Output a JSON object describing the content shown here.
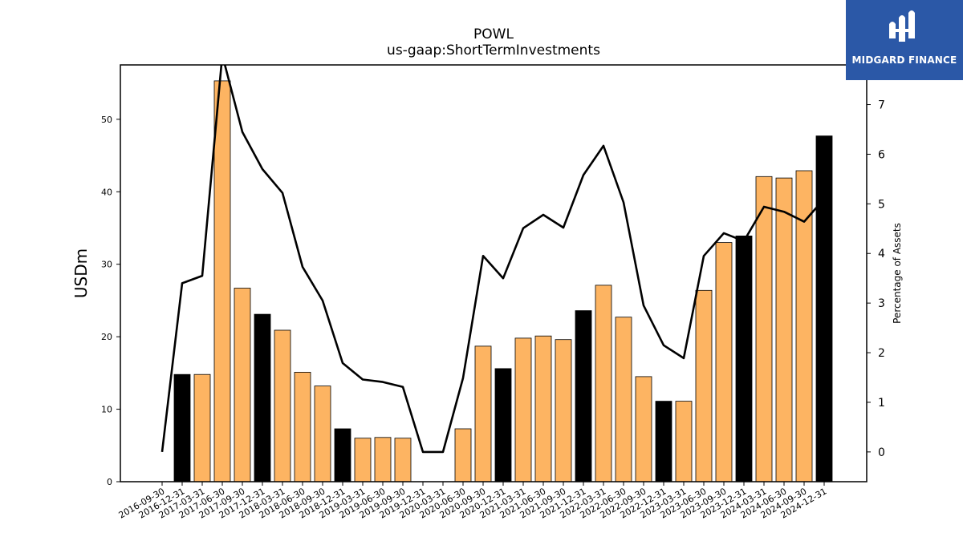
{
  "chart_data": {
    "type": "bar",
    "title": "POWL",
    "subtitle": "us-gaap:ShortTermInvestments",
    "ylabel": "USDm",
    "ylabel_right": "Percentage of Assets",
    "ylim": [
      0,
      57.5
    ],
    "y2lim": [
      -0.6,
      7.8
    ],
    "yticks": [
      0,
      10,
      20,
      30,
      40,
      50
    ],
    "y2ticks": [
      0,
      1,
      2,
      3,
      4,
      5,
      6,
      7
    ],
    "categories": [
      "2016-09-30",
      "2016-12-31",
      "2017-03-31",
      "2017-06-30",
      "2017-09-30",
      "2017-12-31",
      "2018-03-31",
      "2018-06-30",
      "2018-09-30",
      "2018-12-31",
      "2019-03-31",
      "2019-06-30",
      "2019-09-30",
      "2019-12-31",
      "2020-03-31",
      "2020-06-30",
      "2020-09-30",
      "2020-12-31",
      "2021-03-31",
      "2021-06-30",
      "2021-09-30",
      "2021-12-31",
      "2022-03-31",
      "2022-06-30",
      "2022-09-30",
      "2022-12-31",
      "2023-03-31",
      "2023-06-30",
      "2023-09-30",
      "2023-12-31",
      "2024-03-31",
      "2024-06-30",
      "2024-09-30",
      "2024-12-31"
    ],
    "series": [
      {
        "type": "bar",
        "values": [
          0,
          14.8,
          14.8,
          55.3,
          26.7,
          23.1,
          20.9,
          15.1,
          13.2,
          7.3,
          6.0,
          6.1,
          6.0,
          0,
          0,
          7.3,
          18.7,
          15.6,
          19.8,
          20.1,
          19.6,
          23.6,
          27.1,
          22.7,
          14.5,
          11.1,
          11.1,
          26.4,
          33.0,
          33.9,
          42.1,
          41.9,
          42.9,
          47.7
        ],
        "colors": [
          "#fdb462",
          "#000000",
          "#fdb462",
          "#fdb462",
          "#fdb462",
          "#000000",
          "#fdb462",
          "#fdb462",
          "#fdb462",
          "#000000",
          "#fdb462",
          "#fdb462",
          "#fdb462",
          "#000000",
          "#fdb462",
          "#fdb462",
          "#fdb462",
          "#000000",
          "#fdb462",
          "#fdb462",
          "#fdb462",
          "#000000",
          "#fdb462",
          "#fdb462",
          "#fdb462",
          "#000000",
          "#fdb462",
          "#fdb462",
          "#fdb462",
          "#000000",
          "#fdb462",
          "#fdb462",
          "#fdb462",
          "#000000"
        ]
      },
      {
        "type": "line",
        "axis": "right",
        "values": [
          0.0,
          3.4,
          3.55,
          8.0,
          6.45,
          5.7,
          5.22,
          3.73,
          3.05,
          1.79,
          1.46,
          1.41,
          1.31,
          0.0,
          0.0,
          1.49,
          3.95,
          3.5,
          4.51,
          4.78,
          4.52,
          5.58,
          6.17,
          5.03,
          2.95,
          2.15,
          1.89,
          3.95,
          4.41,
          4.25,
          4.94,
          4.84,
          4.64,
          5.1
        ],
        "color": "#000000"
      }
    ]
  },
  "logo": {
    "text": "MIDGARD FINANCE",
    "bg": "#2b58a7"
  }
}
